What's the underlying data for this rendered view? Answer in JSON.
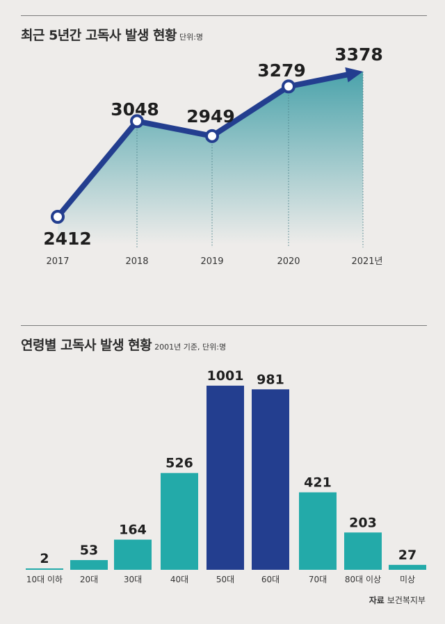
{
  "line_chart": {
    "title": "최근 5년간 고독사 발생 현황",
    "unit": "단위:명"
  },
  "bar_chart": {
    "title": "연령별 고독사 발생 현황",
    "note": "2001년 기준, 단위:명"
  },
  "source": {
    "label": "자료",
    "name": "보건복지부"
  },
  "colors": {
    "line": "#233e8f",
    "area_top": "#4ba3ab",
    "bar_teal": "#23aaa9",
    "bar_navy": "#233e8f"
  },
  "chart_data": [
    {
      "type": "line",
      "title": "최근 5년간 고독사 발생 현황",
      "unit": "단위:명",
      "x": [
        "2017",
        "2018",
        "2019",
        "2020",
        "2021년"
      ],
      "values": [
        2412,
        3048,
        2949,
        3279,
        3378
      ],
      "value_labels": [
        "2412",
        "3048",
        "2949",
        "3279",
        "3378"
      ],
      "ylim": [
        2150,
        3420
      ],
      "grid": false
    },
    {
      "type": "bar",
      "title": "연령별 고독사 발생 현황",
      "unit": "2001년 기준, 단위:명",
      "categories": [
        "10대 이하",
        "20대",
        "30대",
        "40대",
        "50대",
        "60대",
        "70대",
        "80대 이상",
        "미상"
      ],
      "values": [
        2,
        53,
        164,
        526,
        1001,
        981,
        421,
        203,
        27
      ],
      "value_labels": [
        "2",
        "53",
        "164",
        "526",
        "1001",
        "981",
        "421",
        "203",
        "27"
      ],
      "highlight": [
        false,
        false,
        false,
        false,
        true,
        true,
        false,
        false,
        false
      ],
      "ylim": [
        0,
        1001
      ],
      "grid": false
    }
  ]
}
